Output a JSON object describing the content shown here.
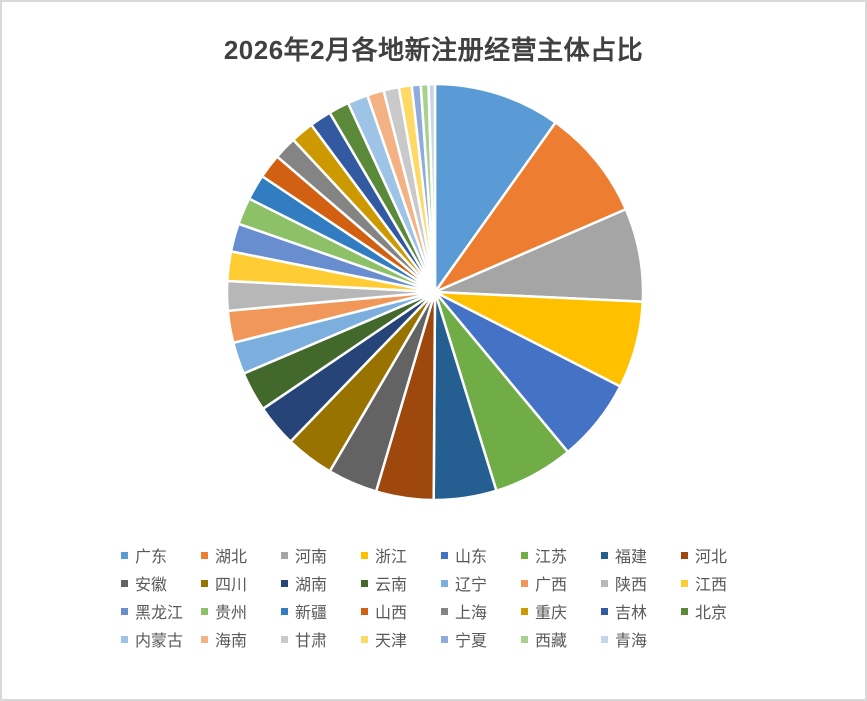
{
  "chart_data": {
    "type": "pie",
    "title": "2026年2月各地新注册经营主体占比",
    "unit": "percent (estimated from slice angles)",
    "legend_position": "bottom",
    "start_angle_deg": 0,
    "direction": "clockwise",
    "categories": [
      "广东",
      "湖北",
      "河南",
      "浙江",
      "山东",
      "江苏",
      "福建",
      "河北",
      "安徽",
      "四川",
      "湖南",
      "云南",
      "辽宁",
      "广西",
      "陕西",
      "江西",
      "黑龙江",
      "贵州",
      "新疆",
      "山西",
      "上海",
      "重庆",
      "吉林",
      "北京",
      "内蒙古",
      "海南",
      "甘肃",
      "天津",
      "宁夏",
      "西藏",
      "青海"
    ],
    "values": [
      9.9,
      8.7,
      7.3,
      6.8,
      6.5,
      6.3,
      4.9,
      4.5,
      3.9,
      3.8,
      3.3,
      3.1,
      2.5,
      2.5,
      2.3,
      2.3,
      2.2,
      2.1,
      2.0,
      1.9,
      1.8,
      1.8,
      1.7,
      1.6,
      1.6,
      1.3,
      1.2,
      1.0,
      0.7,
      0.6,
      0.5
    ],
    "colors": [
      "#5B9BD5",
      "#ED7D31",
      "#A5A5A5",
      "#FFC000",
      "#4472C4",
      "#70AD47",
      "#255E91",
      "#9E480E",
      "#636363",
      "#997300",
      "#264478",
      "#43682B",
      "#7CAFDD",
      "#F1975A",
      "#B7B7B7",
      "#FFCD33",
      "#698ED0",
      "#8CC168",
      "#327DC2",
      "#D26012",
      "#848484",
      "#CC9A00",
      "#335AA1",
      "#5A8A39",
      "#9DC3E6",
      "#F4B183",
      "#C9C9C9",
      "#FFD966",
      "#8FAADC",
      "#A9D18E",
      "#C5D5EB"
    ]
  },
  "header": {
    "title": "2026年2月各地新注册经营主体占比"
  },
  "legend": {
    "items": [
      {
        "label": "广东",
        "color": "#5B9BD5"
      },
      {
        "label": "湖北",
        "color": "#ED7D31"
      },
      {
        "label": "河南",
        "color": "#A5A5A5"
      },
      {
        "label": "浙江",
        "color": "#FFC000"
      },
      {
        "label": "山东",
        "color": "#4472C4"
      },
      {
        "label": "江苏",
        "color": "#70AD47"
      },
      {
        "label": "福建",
        "color": "#255E91"
      },
      {
        "label": "河北",
        "color": "#9E480E"
      },
      {
        "label": "安徽",
        "color": "#636363"
      },
      {
        "label": "四川",
        "color": "#997300"
      },
      {
        "label": "湖南",
        "color": "#264478"
      },
      {
        "label": "云南",
        "color": "#43682B"
      },
      {
        "label": "辽宁",
        "color": "#7CAFDD"
      },
      {
        "label": "广西",
        "color": "#F1975A"
      },
      {
        "label": "陕西",
        "color": "#B7B7B7"
      },
      {
        "label": "江西",
        "color": "#FFCD33"
      },
      {
        "label": "黑龙江",
        "color": "#698ED0"
      },
      {
        "label": "贵州",
        "color": "#8CC168"
      },
      {
        "label": "新疆",
        "color": "#327DC2"
      },
      {
        "label": "山西",
        "color": "#D26012"
      },
      {
        "label": "上海",
        "color": "#848484"
      },
      {
        "label": "重庆",
        "color": "#CC9A00"
      },
      {
        "label": "吉林",
        "color": "#335AA1"
      },
      {
        "label": "北京",
        "color": "#5A8A39"
      },
      {
        "label": "内蒙古",
        "color": "#9DC3E6"
      },
      {
        "label": "海南",
        "color": "#F4B183"
      },
      {
        "label": "甘肃",
        "color": "#C9C9C9"
      },
      {
        "label": "天津",
        "color": "#FFD966"
      },
      {
        "label": "宁夏",
        "color": "#8FAADC"
      },
      {
        "label": "西藏",
        "color": "#A9D18E"
      },
      {
        "label": "青海",
        "color": "#C5D5EB"
      }
    ]
  },
  "style": {
    "border_color": "#d9d9d9",
    "title_color": "#404040",
    "legend_text_color": "#595959"
  }
}
